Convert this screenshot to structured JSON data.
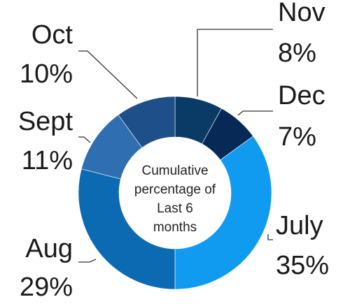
{
  "chart_data": {
    "type": "pie",
    "subtype": "donut",
    "center_text": [
      "Cumulative",
      "percentage of",
      "Last 6",
      "months"
    ],
    "slices": [
      {
        "label": "Nov",
        "value": 8,
        "value_label": "8%",
        "color": "#0a3a66"
      },
      {
        "label": "Dec",
        "value": 7,
        "value_label": "7%",
        "color": "#062a55"
      },
      {
        "label": "July",
        "value": 35,
        "value_label": "35%",
        "color": "#109bf0"
      },
      {
        "label": "Aug",
        "value": 29,
        "value_label": "29%",
        "color": "#0c6ab3"
      },
      {
        "label": "Sept",
        "value": 11,
        "value_label": "11%",
        "color": "#2f6eb0"
      },
      {
        "label": "Oct",
        "value": 10,
        "value_label": "10%",
        "color": "#1e4f88"
      }
    ],
    "legend": "none"
  }
}
